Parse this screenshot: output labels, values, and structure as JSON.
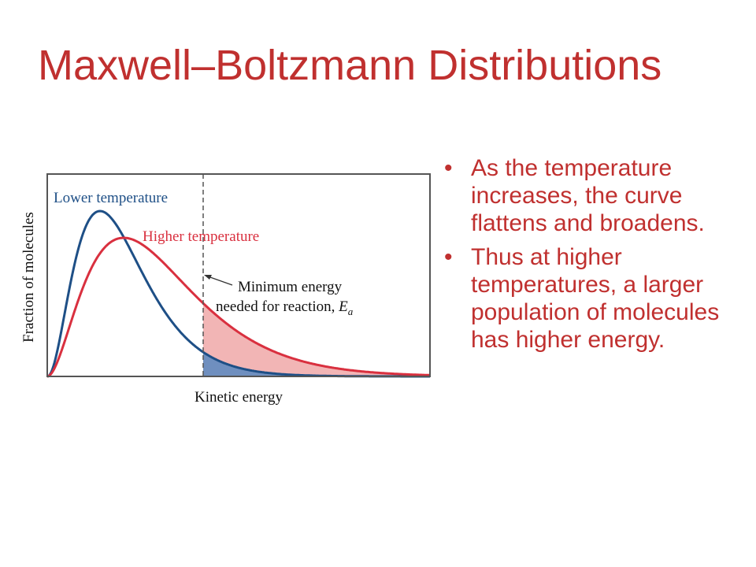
{
  "title": "Maxwell–Boltzmann Distributions",
  "figure": {
    "ylabel": "Fraction of molecules",
    "xlabel": "Kinetic energy",
    "lower_label": "Lower temperature",
    "higher_label": "Higher temperature",
    "ea_line1": "Minimum energy",
    "ea_line2": "needed for reaction, ",
    "ea_symbol": "E",
    "ea_subscript": "a",
    "colors": {
      "lower": "#1e4f86",
      "higher": "#d9303f",
      "lower_fill": "#6f8fbf",
      "higher_fill": "#f2b5b5",
      "frame": "#555555"
    }
  },
  "bullets": [
    "As the temperature increases, the curve flattens and broadens.",
    "Thus at higher temperatures, a larger population of molecules has higher energy."
  ]
}
